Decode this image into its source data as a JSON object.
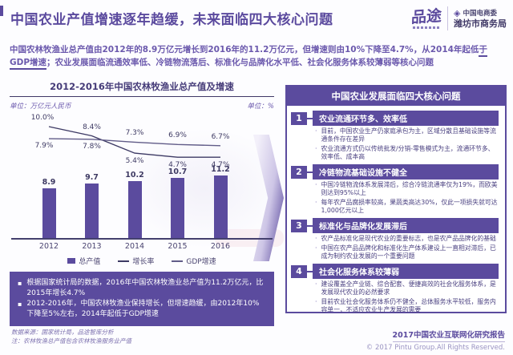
{
  "header": {
    "title": "中国农业产值增速逐年趋缓，未来面临四大核心问题",
    "logo": {
      "brand": "品途",
      "org_icon": "diamond-lattice",
      "org_line1": "中国电商委",
      "org_line2": "潍坊市商务局"
    }
  },
  "intro": {
    "part1": "中国农林牧渔业总产值由2012年的8.9万亿元增长到2016年的11.2万亿元，但增速则由10%下降至4.7%，从2014年起低",
    "underlined": "于GDP增速",
    "part2": "；农业发展面临流通效率低、冷链物流落后、标准化与品牌化水平低、社会化服务体系较薄弱等核心问题"
  },
  "chart_data": {
    "type": "bar",
    "title": "2012-2016年中国农林牧渔业总产值及增速",
    "unit_left": "单位：万亿元人民币",
    "unit_right": "单位：%",
    "categories": [
      "2012",
      "2013",
      "2014",
      "2015",
      "2016"
    ],
    "series": [
      {
        "name": "总产值",
        "kind": "bar",
        "unit": "万亿元人民币",
        "values": [
          8.9,
          9.7,
          10.2,
          10.7,
          11.2
        ],
        "labels": [
          "8.9",
          "9.7",
          "10.2",
          "10.7",
          "11.2"
        ]
      },
      {
        "name": "增长率",
        "kind": "line",
        "unit": "%",
        "values": [
          10.0,
          8.4,
          5.4,
          4.7,
          4.7
        ],
        "labels": [
          "10.0%",
          "8.4%",
          "5.4%",
          "4.7%",
          "4.7%"
        ]
      },
      {
        "name": "GDP增速",
        "kind": "line",
        "unit": "%",
        "values": [
          7.9,
          7.8,
          7.3,
          6.9,
          6.7
        ],
        "labels": [
          "7.9%",
          "7.8%",
          "7.3%",
          "6.9%",
          "6.7%"
        ]
      }
    ],
    "legend": [
      "总产值",
      "增长率",
      "GDP增速"
    ],
    "legend_position": "bottom",
    "grid": false,
    "colors": {
      "bar": "#5b4b9e",
      "line1": "#3d3a64",
      "line2": "#615c88"
    }
  },
  "notes": [
    "根据国家统计局的数据，2016年中国农林牧渔业总产值为11.2万亿元，比2015年增长4.7%",
    "2012-2016年，中国农林牧渔业保持增长，但增速趋缓，由2012年10%下降至5%左右，2014年起低于GDP增速"
  ],
  "panel": {
    "title": "中国农业发展面临四大核心问题",
    "issues": [
      {
        "num": "1",
        "title": "农业流通环节多、效率低",
        "bullets": [
          "目前，中国农业生产仍家庭承包为主，区域分散且基础设施等流通条件存在差异",
          "农业流通方式仍以传统批发/分销-零售模式为主，流通环节多、效率低、成本高"
        ]
      },
      {
        "num": "2",
        "title": "冷链物流基础设施不健全",
        "bullets": [
          "中国冷链物流体系发展滞后，综合冷链流通率仅为19%，而欧美则达到95%以上",
          "每年农产品腐损率较高，果蔬类高达30%，仅此一项损失就可达1,000亿元以上"
        ]
      },
      {
        "num": "3",
        "title": "标准化与品牌化发展滞后",
        "bullets": [
          "农产品标准化是现代农业的重要标志，也是农产品品牌化的基础",
          "中国在农产品品牌化和标准化生产体系建设上一直相对滞后，已成为制约农业发展的一个重要问题"
        ]
      },
      {
        "num": "4",
        "title": "社会化服务体系较薄弱",
        "bullets": [
          "建设覆盖全产业链、综合配套、便捷高效的社会化服务体系，是发展现代农业的必然要求",
          "目前农业社会化服务体系仍不健全，总体服务水平较低，服务内容单一，不适应农业生产发展的需要"
        ]
      }
    ]
  },
  "footer": {
    "source_line1": "数据来源：国家统计局，品途智库分析",
    "source_line2": "注：农林牧渔总产值包含农林牧渔服务业产值",
    "report": "2017中国农业互联网化研究报告",
    "copyright": "© 2017 Pintu Group.All Rights Reserved."
  }
}
